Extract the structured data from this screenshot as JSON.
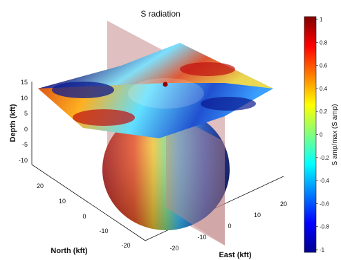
{
  "chart_data": {
    "type": "surface",
    "title": "S radiation",
    "xlabel": "East (kft)",
    "ylabel": "North (kft)",
    "zlabel": "Depth (kft)",
    "xticks": [
      "-20",
      "-10",
      "0",
      "10",
      "20"
    ],
    "yticks": [
      "20",
      "10",
      "0",
      "-10",
      "-20"
    ],
    "zticks": [
      "15",
      "10",
      "5",
      "0",
      "-5",
      "-10"
    ],
    "colorbar": {
      "label": "S amp/max (S amp)",
      "ticks": [
        "1",
        "0.8",
        "0.6",
        "0.4",
        "0.2",
        "0",
        "-0.2",
        "-0.4",
        "-0.6",
        "-0.8",
        "-1"
      ],
      "range": [
        -1,
        1
      ],
      "colormap": "jet"
    },
    "elements": [
      "horizontal plane",
      "vertical plane",
      "sphere",
      "source point"
    ],
    "colors": {
      "plane": "#c48a8a",
      "source": "#8b0000"
    }
  }
}
